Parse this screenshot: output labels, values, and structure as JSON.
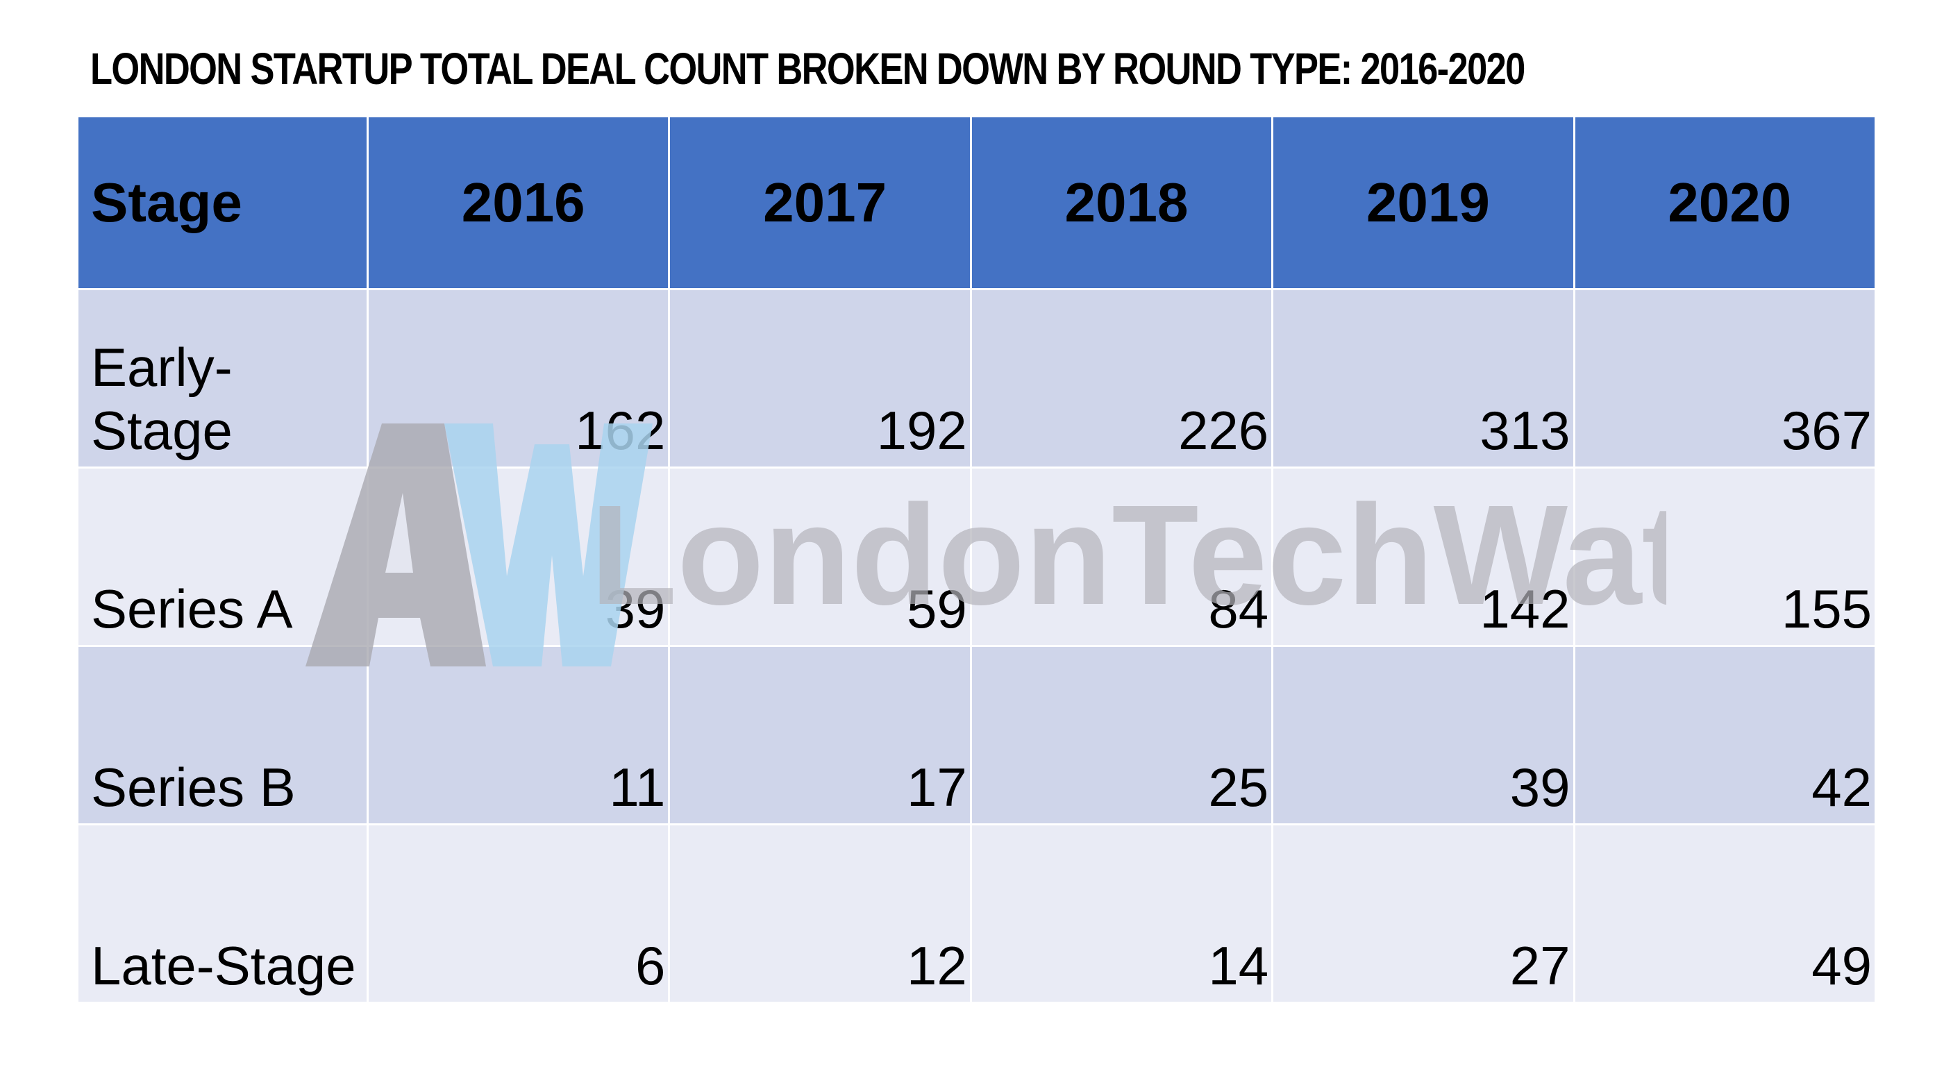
{
  "title": "London Startup Total Deal Count Broken Down By Round Type: 2016-2020",
  "watermark": {
    "logo_letters": "AW",
    "text": "LondonTechWatch"
  },
  "colors": {
    "header_bg": "#4472c4",
    "row_odd": "#cfd5ea",
    "row_even": "#e9ebf5"
  },
  "chart_data": {
    "type": "table",
    "title": "London Startup Total Deal Count Broken Down By Round Type: 2016-2020",
    "columns": [
      "Stage",
      "2016",
      "2017",
      "2018",
      "2019",
      "2020"
    ],
    "rows": [
      {
        "stage": "Early-Stage",
        "values": [
          162,
          192,
          226,
          313,
          367
        ]
      },
      {
        "stage": "Series A",
        "values": [
          39,
          59,
          84,
          142,
          155
        ]
      },
      {
        "stage": "Series B",
        "values": [
          11,
          17,
          25,
          39,
          42
        ]
      },
      {
        "stage": "Late-Stage",
        "values": [
          6,
          12,
          14,
          27,
          49
        ]
      }
    ]
  }
}
